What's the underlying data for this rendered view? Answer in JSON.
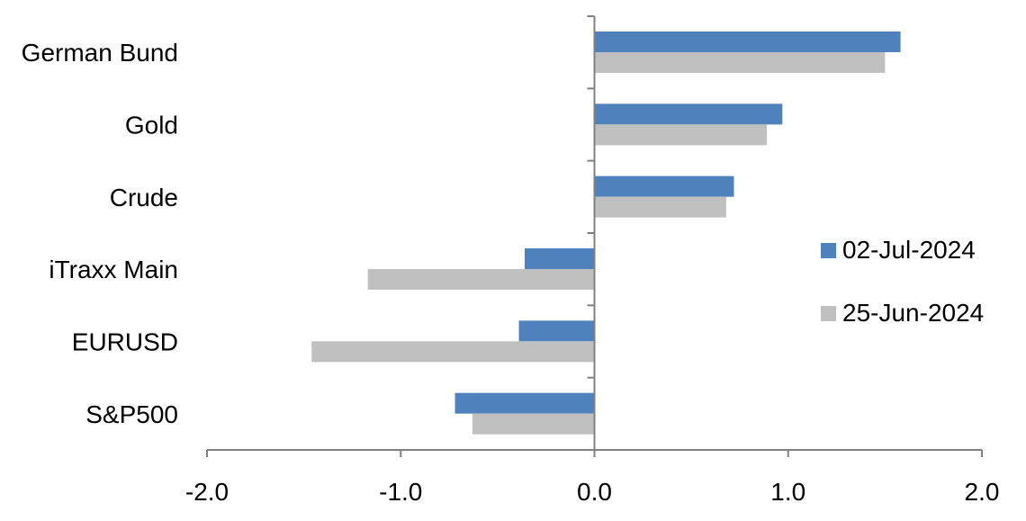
{
  "chart_data": {
    "type": "bar",
    "orientation": "horizontal",
    "title": "",
    "xlabel": "",
    "ylabel": "",
    "categories": [
      "German Bund",
      "Gold",
      "Crude",
      "iTraxx Main",
      "EURUSD",
      "S&P500"
    ],
    "series": [
      {
        "name": "02-Jul-2024",
        "color": "#4f81bd",
        "values": [
          1.58,
          0.97,
          0.72,
          -0.36,
          -0.39,
          -0.72
        ]
      },
      {
        "name": "25-Jun-2024",
        "color": "#c0c0c0",
        "values": [
          1.5,
          0.89,
          0.68,
          -1.17,
          -1.46,
          -0.63
        ]
      }
    ],
    "xlim": [
      -2.0,
      2.0
    ],
    "xticks": [
      "-2.0",
      "-1.0",
      "0.0",
      "1.0",
      "2.0"
    ],
    "grid": false,
    "legend_position": "right"
  }
}
